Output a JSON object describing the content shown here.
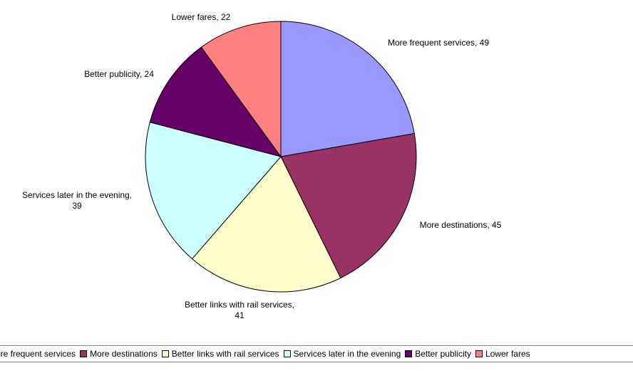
{
  "chart_data": {
    "type": "pie",
    "categories": [
      "More frequent services",
      "More destinations",
      "Better links with rail services",
      "Services later in the evening",
      "Better publicity",
      "Lower fares"
    ],
    "values": [
      49,
      45,
      41,
      39,
      24,
      22
    ],
    "colors": [
      "#9999ff",
      "#993366",
      "#ffffcc",
      "#ccffff",
      "#660066",
      "#ff8080"
    ],
    "slice_labels": [
      [
        "More frequent services, 49"
      ],
      [
        "More destinations, 45"
      ],
      [
        "Better links with rail services,",
        "41"
      ],
      [
        "Services later in the evening,",
        "39"
      ],
      [
        "Better publicity, 24"
      ],
      [
        "Lower fares, 22"
      ]
    ],
    "legend": {
      "position": "bottom",
      "items": [
        {
          "label": "More frequent services",
          "color": "#9999ff"
        },
        {
          "label": "More destinations",
          "color": "#993366"
        },
        {
          "label": "Better links with rail services",
          "color": "#ffffcc"
        },
        {
          "label": "Services later in the evening",
          "color": "#ccffff"
        },
        {
          "label": "Better publicity",
          "color": "#660066"
        },
        {
          "label": "Lower fares",
          "color": "#ff8080"
        }
      ]
    }
  }
}
